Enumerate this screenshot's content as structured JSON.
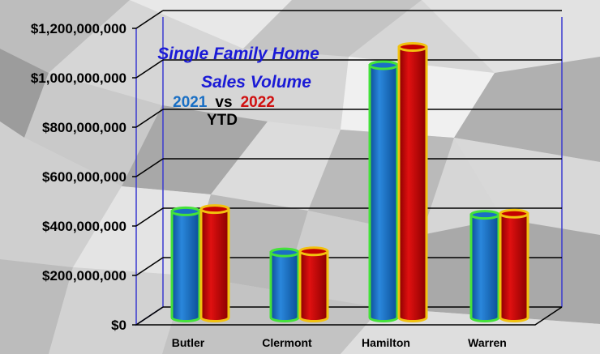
{
  "chart_data": {
    "type": "bar",
    "title_lines": [
      "Single Family Home",
      "Sales Volume"
    ],
    "subtitle": {
      "year_a": "2021",
      "vs": "vs",
      "year_b": "2022",
      "period": "YTD"
    },
    "categories": [
      "Butler",
      "Clermont",
      "Hamilton",
      "Warren"
    ],
    "series": [
      {
        "name": "2021",
        "values": [
          465000000,
          285000000,
          1105000000,
          450000000
        ],
        "color": "#1a6fc4",
        "outline": "#44e23a"
      },
      {
        "name": "2022",
        "values": [
          475000000,
          290000000,
          1185000000,
          455000000
        ],
        "color": "#c40000",
        "outline": "#f2c20f"
      }
    ],
    "ylim": [
      0,
      1200000000
    ],
    "yticks": [
      "$0",
      "$200,000,000",
      "$400,000,000",
      "$600,000,000",
      "$800,000,000",
      "$1,000,000,000",
      "$1,200,000,000"
    ],
    "grid": true,
    "colors": {
      "title": "#1a1ad6",
      "year_a": "#1a6fc4",
      "year_b": "#d01010",
      "frame": "#3a3ad0"
    }
  }
}
